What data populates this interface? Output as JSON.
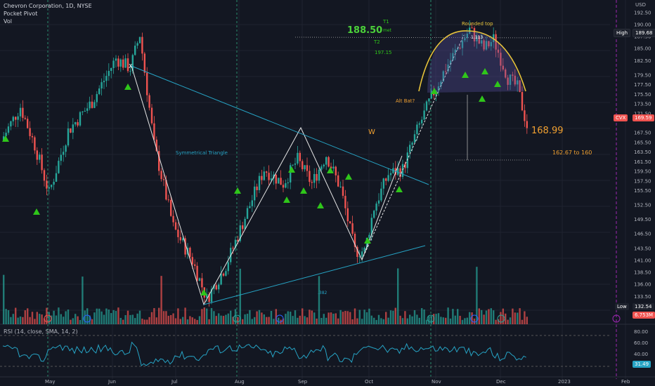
{
  "header": {
    "symbol_line": "Chevron Corporation, 1D, NYSE",
    "indicator1": "Pocket Pivot",
    "indicator2": "Vol"
  },
  "axis": {
    "currency": "USD",
    "price_ticks": [
      "192.50",
      "190.00",
      "187.50",
      "185.00",
      "182.50",
      "179.50",
      "177.50",
      "175.50",
      "173.50",
      "171.50",
      "167.50",
      "165.50",
      "163.50",
      "161.50",
      "159.50",
      "157.50",
      "155.50",
      "152.50",
      "149.50",
      "146.50",
      "143.50",
      "141.00",
      "138.50",
      "136.00",
      "133.50"
    ],
    "month_labels": [
      "May",
      "Jun",
      "Jul",
      "Aug",
      "Sep",
      "Oct",
      "Nov",
      "Dec",
      "2023",
      "Feb"
    ],
    "rsi_ticks": [
      "80.00",
      "60.00",
      "40.00",
      "20.00"
    ]
  },
  "badges": {
    "high_label": "High",
    "high_value": "189.68",
    "cvx_label": "CVX",
    "cvx_value": "169.59",
    "low_label": "Low",
    "low_value": "132.54",
    "vol_value": "6.753M",
    "rsi_value": "31.49"
  },
  "annotations": {
    "t1": "T1",
    "target_price": "188.50",
    "met": "met",
    "t2": "T2",
    "t2_value": "197.15",
    "rounded_top": "Rounded top",
    "level_1113": "1.113",
    "alt_bat": "Alt Bat?",
    "w": "W",
    "price_1": "168.99",
    "range": "162.67 to 160",
    "sym_triangle": "Symmetrical Triangle",
    "fib_382": ".382",
    "x_point": "X"
  },
  "rsi": {
    "label": "RSI (14, close, SMA, 14, 2)"
  },
  "colors": {
    "bg": "#131722",
    "up": "#26a69a",
    "down": "#ef5350",
    "triangle": "#2fc61a",
    "trend": "#26a3c4",
    "arc": "#e8c43a",
    "purple": "#9c27b0"
  },
  "chart_data": {
    "type": "candlestick",
    "title": "Chevron Corporation, 1D, NYSE",
    "ylim": [
      131,
      194
    ],
    "anchor_points": [
      {
        "t": 0,
        "price": 166
      },
      {
        "t": 8,
        "price": 173
      },
      {
        "t": 14,
        "price": 165
      },
      {
        "t": 20,
        "price": 155
      },
      {
        "t": 28,
        "price": 168
      },
      {
        "t": 38,
        "price": 174
      },
      {
        "t": 48,
        "price": 183
      },
      {
        "t": 54,
        "price": 181
      },
      {
        "t": 58,
        "price": 188
      },
      {
        "t": 64,
        "price": 165
      },
      {
        "t": 72,
        "price": 148
      },
      {
        "t": 80,
        "price": 141
      },
      {
        "t": 86,
        "price": 133
      },
      {
        "t": 94,
        "price": 140
      },
      {
        "t": 102,
        "price": 150
      },
      {
        "t": 110,
        "price": 160
      },
      {
        "t": 118,
        "price": 157
      },
      {
        "t": 124,
        "price": 162
      },
      {
        "t": 130,
        "price": 157
      },
      {
        "t": 136,
        "price": 163
      },
      {
        "t": 142,
        "price": 156
      },
      {
        "t": 148,
        "price": 143
      },
      {
        "t": 152,
        "price": 143
      },
      {
        "t": 156,
        "price": 152
      },
      {
        "t": 162,
        "price": 159
      },
      {
        "t": 168,
        "price": 160
      },
      {
        "t": 174,
        "price": 168
      },
      {
        "t": 180,
        "price": 175
      },
      {
        "t": 186,
        "price": 181
      },
      {
        "t": 192,
        "price": 186
      },
      {
        "t": 196,
        "price": 189
      },
      {
        "t": 202,
        "price": 185
      },
      {
        "t": 206,
        "price": 187
      },
      {
        "t": 212,
        "price": 179
      },
      {
        "t": 216,
        "price": 177
      },
      {
        "t": 220,
        "price": 169
      }
    ]
  }
}
